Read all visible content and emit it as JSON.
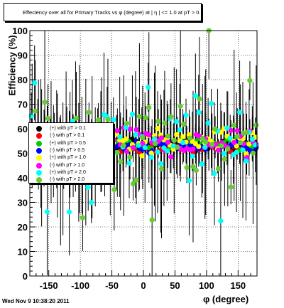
{
  "header": {
    "title": "Effeciency over all for Primary Tracks vs φ (degree) at | η | <= 1.0 at pT > 0.1"
  },
  "footer": {
    "timestamp": "Wed Nov  9 10:38:20 2011"
  },
  "chart_data": {
    "type": "scatter",
    "title": "Effeciency over all for Primary Tracks vs φ (degree) at | η | <= 1.0 at pT > 0.1",
    "xlabel": "φ (degree)",
    "ylabel": "Efficiency (%)",
    "xlim": [
      -180,
      180
    ],
    "ylim": [
      0,
      100
    ],
    "grid": true,
    "legend_position": "left",
    "x_ticks": [
      "-150",
      "-100",
      "-50",
      "0",
      "50",
      "100",
      "150"
    ],
    "y_ticks": [
      "0",
      "10",
      "20",
      "30",
      "40",
      "50",
      "60",
      "70",
      "80",
      "90",
      "100"
    ],
    "series": [
      {
        "name": "(+) with pT > 0.1",
        "color": "#000000",
        "center": 53.5,
        "spread": 2.5
      },
      {
        "name": "(-) with pT > 0.1",
        "color": "#ff0000",
        "center": 52.5,
        "spread": 2.5
      },
      {
        "name": "(+) with pT > 0.5",
        "color": "#00cc00",
        "center": 54.0,
        "spread": 3.0
      },
      {
        "name": "(-) with pT > 0.5",
        "color": "#0000ff",
        "center": 53.0,
        "spread": 3.0
      },
      {
        "name": "(+) with pT > 1.0",
        "color": "#ffff00",
        "center": 54.5,
        "spread": 6.0
      },
      {
        "name": "(-) with pT > 1.0",
        "color": "#ff00ff",
        "center": 54.0,
        "spread": 7.0
      },
      {
        "name": "(+) with pT > 2.0",
        "color": "#00ffff",
        "center": 55.0,
        "spread": 18.0
      },
      {
        "name": "(-) with pT > 2.0",
        "color": "#66cc33",
        "center": 56.0,
        "spread": 20.0
      }
    ]
  }
}
